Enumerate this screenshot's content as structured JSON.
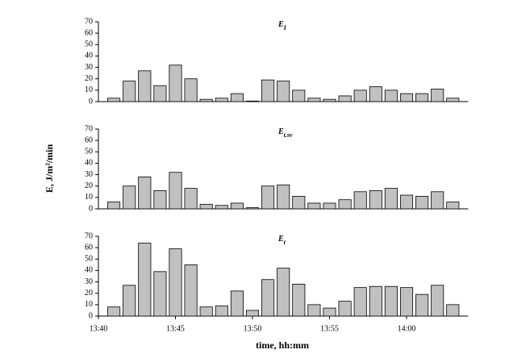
{
  "chart_data": [
    {
      "type": "bar",
      "title": "E",
      "title_sub": "I",
      "color": "#c0c0c0",
      "x": [
        "13:41",
        "13:42",
        "13:43",
        "13:44",
        "13:45",
        "13:46",
        "13:47",
        "13:48",
        "13:49",
        "13:50",
        "13:51",
        "13:52",
        "13:53",
        "13:54",
        "13:55",
        "13:56",
        "13:57",
        "13:58",
        "13:59",
        "14:00",
        "14:01",
        "14:02",
        "14:03"
      ],
      "values": [
        3,
        18,
        27,
        14,
        32,
        20,
        2,
        3,
        7,
        0.5,
        19,
        18,
        10,
        3,
        2,
        5,
        10,
        13,
        10,
        7,
        7,
        11,
        3
      ],
      "xlim": [
        "13:40",
        "14:04"
      ],
      "ylim": [
        0,
        70
      ],
      "yticks": [
        0,
        10,
        20,
        30,
        40,
        50,
        60,
        70
      ]
    },
    {
      "type": "bar",
      "title": "E",
      "title_sub": "t.sv",
      "color": "#c0c0c0",
      "y_label": "E, J/m²/min",
      "x": [
        "13:41",
        "13:42",
        "13:43",
        "13:44",
        "13:45",
        "13:46",
        "13:47",
        "13:48",
        "13:49",
        "13:50",
        "13:51",
        "13:52",
        "13:53",
        "13:54",
        "13:55",
        "13:56",
        "13:57",
        "13:58",
        "13:59",
        "14:00",
        "14:01",
        "14:02",
        "14:03"
      ],
      "values": [
        6,
        20,
        28,
        16,
        32,
        18,
        4,
        3,
        5,
        1,
        20,
        21,
        11,
        5,
        5,
        8,
        15,
        16,
        18,
        12,
        11,
        15,
        6
      ],
      "xlim": [
        "13:40",
        "14:04"
      ],
      "ylim": [
        0,
        70
      ],
      "yticks": [
        0,
        10,
        20,
        30,
        40,
        50,
        60,
        70
      ]
    },
    {
      "type": "bar",
      "title": "E",
      "title_sub": "t",
      "color": "#c0c0c0",
      "x_label": "time, hh:mm",
      "x": [
        "13:41",
        "13:42",
        "13:43",
        "13:44",
        "13:45",
        "13:46",
        "13:47",
        "13:48",
        "13:49",
        "13:50",
        "13:51",
        "13:52",
        "13:53",
        "13:54",
        "13:55",
        "13:56",
        "13:57",
        "13:58",
        "13:59",
        "14:00",
        "14:01",
        "14:02",
        "14:03"
      ],
      "values": [
        8,
        27,
        64,
        39,
        59,
        45,
        8,
        9,
        22,
        5,
        32,
        42,
        28,
        10,
        7,
        13,
        25,
        26,
        26,
        25,
        19,
        27,
        10
      ],
      "xlim": [
        "13:40",
        "14:04"
      ],
      "ylim": [
        0,
        70
      ],
      "yticks": [
        0,
        10,
        20,
        30,
        40,
        50,
        60,
        70
      ],
      "xticks": [
        "13:40",
        "13:45",
        "13:50",
        "13:55",
        "14:00"
      ]
    }
  ]
}
